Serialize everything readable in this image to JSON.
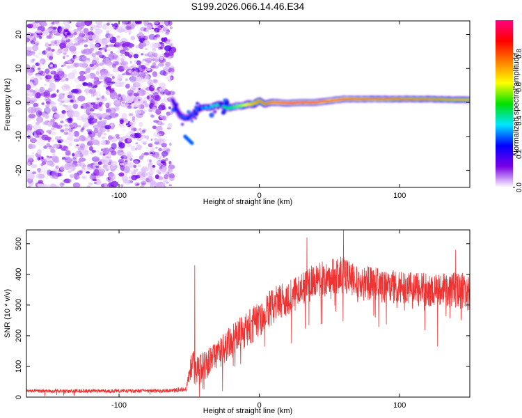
{
  "title": "S199.2026.066.14.46.E34",
  "chart_data": [
    {
      "type": "heatmap",
      "title": "S199.2026.066.14.46.E34",
      "xlabel": "Height of straight line (km)",
      "ylabel": "Frequency (Hz)",
      "xlim": [
        -166,
        150
      ],
      "ylim": [
        -25,
        24
      ],
      "xticks": [
        -100,
        0,
        100
      ],
      "yticks": [
        -20,
        -10,
        0,
        10,
        20
      ],
      "colorbar": {
        "label": "Normalized spectral amplitude",
        "range": [
          0,
          1
        ],
        "ticks": [
          0.0,
          0.2,
          0.4,
          0.6,
          0.8
        ],
        "colormap": "rainbow (white-violet-blue-cyan-green-yellow-red-magenta)",
        "colors": [
          "#ffffff",
          "#7a00e6",
          "#0000ff",
          "#00e5ff",
          "#00e000",
          "#ffff00",
          "#ff7f00",
          "#ff0000",
          "#ff0080"
        ]
      },
      "noise_region_x": [
        -166,
        -62
      ],
      "noise_amplitude_range": [
        0.02,
        0.12
      ],
      "ridge": {
        "x": [
          -62,
          -59,
          -56,
          -53,
          -50,
          -47,
          -44,
          -40,
          -36,
          -32,
          -28,
          -24,
          -20,
          -16,
          -12,
          -8,
          -4,
          0,
          4,
          8,
          12,
          20,
          30,
          40,
          50,
          60,
          80,
          100,
          120,
          140,
          150
        ],
        "frequency": [
          1.0,
          -2.0,
          -4.0,
          -4.5,
          -4.5,
          -3.5,
          -2.0,
          -1.5,
          -1.5,
          -1.0,
          -0.5,
          -1.5,
          -1.5,
          -1.0,
          -1.0,
          -0.5,
          -0.5,
          0.5,
          -0.5,
          0.0,
          0.0,
          -0.2,
          0.0,
          0.0,
          0.5,
          1.0,
          1.0,
          1.0,
          1.0,
          0.8,
          0.8
        ],
        "amplitude": [
          0.2,
          0.25,
          0.3,
          0.3,
          0.28,
          0.3,
          0.32,
          0.35,
          0.38,
          0.4,
          0.42,
          0.45,
          0.5,
          0.55,
          0.6,
          0.65,
          0.7,
          0.75,
          0.8,
          0.85,
          0.9,
          0.95,
          0.97,
          0.95,
          0.9,
          0.88,
          0.85,
          0.82,
          0.78,
          0.72,
          0.7
        ]
      },
      "side_lobe": {
        "x": [
          -53,
          -48
        ],
        "frequency": [
          -10,
          -12
        ],
        "amplitude": 0.3
      }
    },
    {
      "type": "line",
      "title": "",
      "xlabel": "Height of straight line (km)",
      "ylabel": "SNR (10 * v/v)",
      "xlim": [
        -166,
        150
      ],
      "ylim": [
        0,
        545
      ],
      "xticks": [
        -100,
        0,
        100
      ],
      "yticks": [
        0,
        100,
        200,
        300,
        400,
        500
      ],
      "series": [
        {
          "name": "SNR",
          "color": "#ee3333",
          "x_envelope": [
            -166,
            -150,
            -120,
            -100,
            -70,
            -52,
            -48,
            -45,
            -40,
            -30,
            -20,
            -10,
            0,
            10,
            20,
            30,
            40,
            50,
            60,
            70,
            80,
            90,
            100,
            110,
            120,
            130,
            140,
            150
          ],
          "mean_envelope": [
            20,
            20,
            20,
            20,
            20,
            25,
            120,
            80,
            100,
            140,
            180,
            220,
            250,
            300,
            320,
            350,
            380,
            390,
            400,
            380,
            370,
            360,
            360,
            350,
            350,
            350,
            350,
            340
          ],
          "noise_envelope": [
            5,
            6,
            6,
            6,
            6,
            8,
            60,
            50,
            50,
            50,
            55,
            60,
            60,
            60,
            55,
            55,
            60,
            60,
            60,
            55,
            55,
            55,
            55,
            55,
            55,
            55,
            60,
            60
          ],
          "peaks": [
            {
              "x": -46,
              "y": 430
            },
            {
              "x": 60,
              "y": 545
            },
            {
              "x": 34,
              "y": 520
            },
            {
              "x": 140,
              "y": 480
            },
            {
              "x": 127,
              "y": 165
            }
          ]
        }
      ]
    }
  ]
}
